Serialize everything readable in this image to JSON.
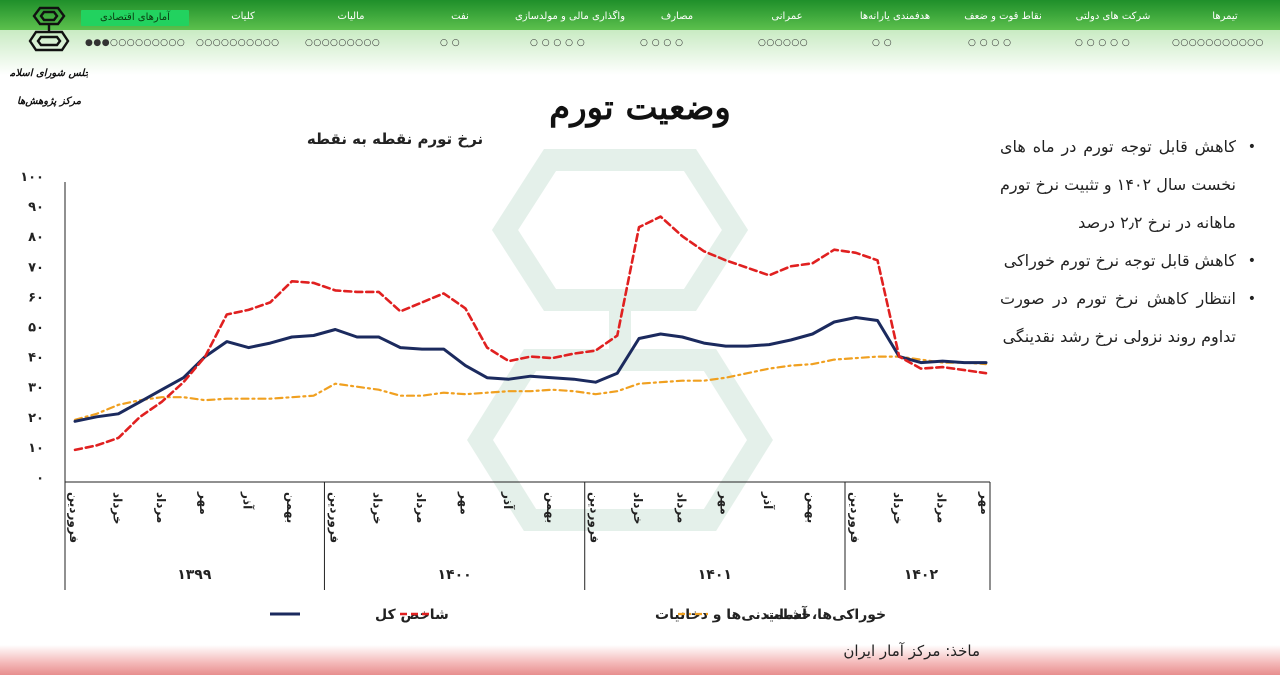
{
  "nav": {
    "tabs": [
      {
        "label": "تیمرها",
        "dots": "○○○○○○○○○○○"
      },
      {
        "label": "شرکت های دولتی",
        "dots": "○ ○ ○ ○ ○"
      },
      {
        "label": "نقاط قوت و ضعف",
        "dots": "○ ○ ○ ○"
      },
      {
        "label": "هدفمندی یارانه‌ها",
        "dots": "○ ○"
      },
      {
        "label": "عمرانی",
        "dots": "○○○○○○"
      },
      {
        "label": "مصارف",
        "dots": "○ ○ ○ ○"
      },
      {
        "label": "واگذاری مالی و مولدسازی",
        "dots": "○ ○ ○ ○ ○"
      },
      {
        "label": "نفت",
        "dots": "○ ○"
      },
      {
        "label": "مالیات",
        "dots": "○○○○○○○○○"
      },
      {
        "label": "کلیات",
        "dots": "○○○○○○○○○○"
      },
      {
        "label": "آمارهای اقتصادی",
        "dots": "●●●○○○○○○○○○"
      }
    ]
  },
  "logo": {
    "line1": "مجلس شورای اسلامی",
    "line2": "مرکز پژوهش‌ها"
  },
  "page": {
    "title": "وضعیت تورم",
    "source": "ماخذ: مرکز آمار ایران"
  },
  "bullets": [
    "کاهش قابل توجه تورم در ماه های نخست سال ۱۴۰۲ و تثبیت نرخ تورم ماهانه در نرخ ۲٫۲ درصد",
    "کاهش قابل توجه نرخ تورم خوراکی",
    "انتظار کاهش نرخ تورم در صورت تداوم روند نزولی نرخ رشد نقدینگی"
  ],
  "colors": {
    "total": "#1b2a5e",
    "food": "#e02020",
    "services": "#f0a020"
  },
  "chart_data": {
    "type": "line",
    "title": "نرخ تورم نقطه به نقطه",
    "ylim": [
      0,
      100
    ],
    "yticks": [
      "۰",
      "۱۰",
      "۲۰",
      "۳۰",
      "۴۰",
      "۵۰",
      "۶۰",
      "۷۰",
      "۸۰",
      "۹۰",
      "۱۰۰"
    ],
    "grid": false,
    "legend_position": "bottom",
    "x_month_labels": [
      "فروردین",
      "خرداد",
      "مرداد",
      "مهر",
      "آذر",
      "بهمن",
      "فروردین",
      "خرداد",
      "مرداد",
      "مهر",
      "آذر",
      "بهمن",
      "فروردین",
      "خرداد",
      "مرداد",
      "مهر",
      "آذر",
      "بهمن",
      "فروردین",
      "خرداد",
      "مرداد",
      "مهر"
    ],
    "years": [
      {
        "label": "۱۳۹۹",
        "months": 12
      },
      {
        "label": "۱۴۰۰",
        "months": 12
      },
      {
        "label": "۱۴۰۱",
        "months": 12
      },
      {
        "label": "۱۴۰۲",
        "months": 7
      }
    ],
    "series": [
      {
        "name": "شاخص کل",
        "style": "solid",
        "values": [
          18.5,
          20,
          21,
          25,
          29,
          33,
          40,
          45,
          43,
          44.5,
          46.5,
          47,
          49,
          46.5,
          46.5,
          43,
          42.5,
          42.5,
          37,
          33,
          32.5,
          33.5,
          33,
          32.5,
          31.5,
          34.5,
          46,
          47.5,
          46.5,
          44.5,
          43.5,
          43.5,
          44,
          45.5,
          47.5,
          51.5,
          53,
          52,
          40,
          38,
          38.5,
          38,
          38
        ]
      },
      {
        "name": "خوراکی‌ها، آشامیدنی‌ها و دخانیات",
        "style": "dashed",
        "values": [
          9,
          10.5,
          13,
          20,
          25,
          31.5,
          40,
          54,
          55.5,
          58,
          65,
          64.5,
          62,
          61.5,
          61.5,
          55,
          58,
          61,
          56,
          43,
          38.5,
          40,
          39.5,
          41,
          42,
          47,
          83,
          86.5,
          80,
          75,
          72,
          69.5,
          67,
          70,
          71,
          75.5,
          74.5,
          72,
          40,
          36,
          36.5,
          35.5,
          34.5
        ]
      },
      {
        "name": "خدمات",
        "style": "dash-dot",
        "values": [
          19,
          21,
          24,
          25.5,
          26.5,
          26.5,
          25.5,
          26,
          26,
          26,
          26.5,
          27,
          31,
          30,
          29,
          27,
          27,
          28,
          27.5,
          28,
          28.5,
          28.5,
          29,
          28.5,
          27.5,
          28.5,
          31,
          31.5,
          32,
          32,
          33,
          34.5,
          36,
          37,
          37.5,
          39,
          39.5,
          40,
          40,
          39,
          38,
          38,
          37.5
        ]
      }
    ]
  }
}
